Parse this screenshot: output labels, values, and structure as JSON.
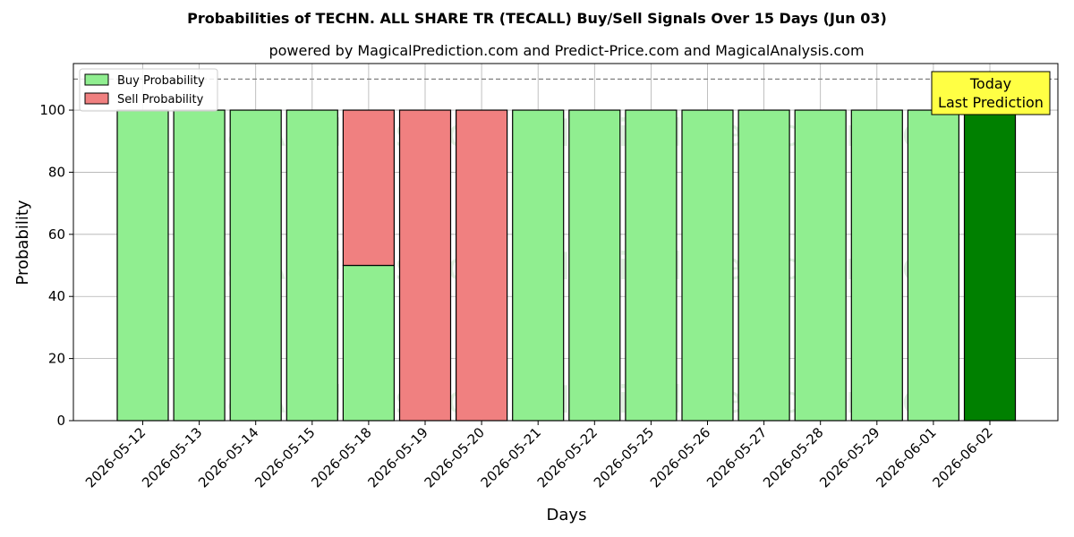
{
  "chart_data": {
    "type": "bar",
    "stacked": true,
    "title": "Probabilities of TECHN. ALL SHARE TR (TECALL) Buy/Sell Signals Over 15 Days (Jun 03)",
    "subtitle": "powered by MagicalPrediction.com and Predict-Price.com and MagicalAnalysis.com",
    "xlabel": "Days",
    "ylabel": "Probability",
    "ylim": [
      0,
      115
    ],
    "yticks": [
      0,
      20,
      40,
      60,
      80,
      100
    ],
    "reference_line": 110,
    "grid": true,
    "legend_position": "top-left",
    "categories": [
      "2026-05-12",
      "2026-05-13",
      "2026-05-14",
      "2026-05-15",
      "2026-05-18",
      "2026-05-19",
      "2026-05-20",
      "2026-05-21",
      "2026-05-22",
      "2026-05-25",
      "2026-05-26",
      "2026-05-27",
      "2026-05-28",
      "2026-05-29",
      "2026-06-01",
      "2026-06-02"
    ],
    "series": [
      {
        "name": "Buy Probability",
        "color": "#90ee90",
        "values": [
          100,
          100,
          100,
          100,
          50,
          0,
          0,
          100,
          100,
          100,
          100,
          100,
          100,
          100,
          100,
          100
        ]
      },
      {
        "name": "Sell Probability",
        "color": "#f08080",
        "values": [
          0,
          0,
          0,
          0,
          50,
          100,
          100,
          0,
          0,
          0,
          0,
          0,
          0,
          0,
          0,
          0
        ]
      }
    ],
    "highlight": {
      "index": 15,
      "color": "#008000"
    },
    "annotation": {
      "line1": "Today",
      "line2": "Last Prediction",
      "color": "#ffff44"
    },
    "watermark_rows": [
      [
        "MagicalAnalysis.com",
        "MagicalPrediction.com"
      ],
      [
        "MagicalAnalysis.com",
        "MagicalPrediction.com"
      ],
      [
        "MagicalAnalysis.com",
        "MagicalPrediction.com"
      ]
    ]
  }
}
